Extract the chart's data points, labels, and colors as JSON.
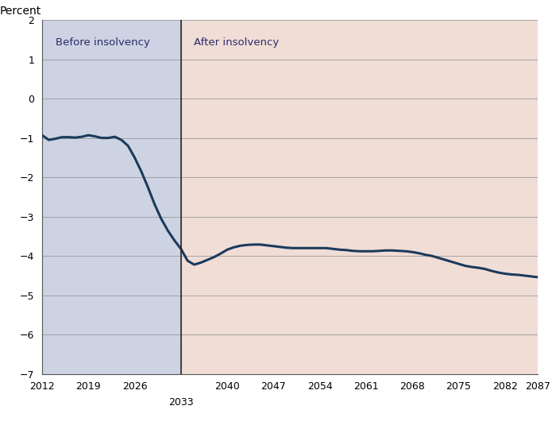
{
  "title_ylabel": "Percent",
  "before_label": "Before insolvency",
  "after_label": "After insolvency",
  "insolvency_year": 2033,
  "xmin": 2012,
  "xmax": 2087,
  "ymin": -7,
  "ymax": 2,
  "yticks": [
    -7,
    -6,
    -5,
    -4,
    -3,
    -2,
    -1,
    0,
    1,
    2
  ],
  "xticks": [
    2012,
    2019,
    2026,
    2033,
    2040,
    2047,
    2054,
    2061,
    2068,
    2075,
    2082,
    2087
  ],
  "xtick_labels": [
    "2012",
    "2019",
    "2026",
    "",
    "2040",
    "2047",
    "2054",
    "2061",
    "2068",
    "2075",
    "2082",
    "2087"
  ],
  "before_bg_color": "#cdd3e3",
  "after_bg_color": "#f0ddd6",
  "line_color": "#1b3a5c",
  "line_width": 2.2,
  "years": [
    2012,
    2013,
    2014,
    2015,
    2016,
    2017,
    2018,
    2019,
    2020,
    2021,
    2022,
    2023,
    2024,
    2025,
    2026,
    2027,
    2028,
    2029,
    2030,
    2031,
    2032,
    2033,
    2034,
    2035,
    2036,
    2037,
    2038,
    2039,
    2040,
    2041,
    2042,
    2043,
    2044,
    2045,
    2046,
    2047,
    2048,
    2049,
    2050,
    2051,
    2052,
    2053,
    2054,
    2055,
    2056,
    2057,
    2058,
    2059,
    2060,
    2061,
    2062,
    2063,
    2064,
    2065,
    2066,
    2067,
    2068,
    2069,
    2070,
    2071,
    2072,
    2073,
    2074,
    2075,
    2076,
    2077,
    2078,
    2079,
    2080,
    2081,
    2082,
    2083,
    2084,
    2085,
    2086,
    2087
  ],
  "values": [
    -0.93,
    -1.05,
    -1.02,
    -0.98,
    -0.98,
    -0.99,
    -0.97,
    -0.93,
    -0.96,
    -1.0,
    -1.0,
    -0.97,
    -1.05,
    -1.2,
    -1.5,
    -1.85,
    -2.25,
    -2.68,
    -3.05,
    -3.35,
    -3.6,
    -3.82,
    -4.12,
    -4.22,
    -4.17,
    -4.1,
    -4.03,
    -3.94,
    -3.84,
    -3.78,
    -3.74,
    -3.72,
    -3.71,
    -3.71,
    -3.73,
    -3.75,
    -3.77,
    -3.79,
    -3.8,
    -3.8,
    -3.8,
    -3.8,
    -3.8,
    -3.8,
    -3.82,
    -3.84,
    -3.85,
    -3.87,
    -3.88,
    -3.88,
    -3.88,
    -3.87,
    -3.86,
    -3.86,
    -3.87,
    -3.88,
    -3.9,
    -3.93,
    -3.97,
    -4.0,
    -4.05,
    -4.1,
    -4.15,
    -4.2,
    -4.25,
    -4.28,
    -4.3,
    -4.33,
    -4.38,
    -4.42,
    -4.45,
    -4.47,
    -4.48,
    -4.5,
    -4.52,
    -4.54
  ],
  "vline_color": "#222222",
  "grid_color": "#999999",
  "label_fontsize": 9.5,
  "tick_fontsize": 9
}
